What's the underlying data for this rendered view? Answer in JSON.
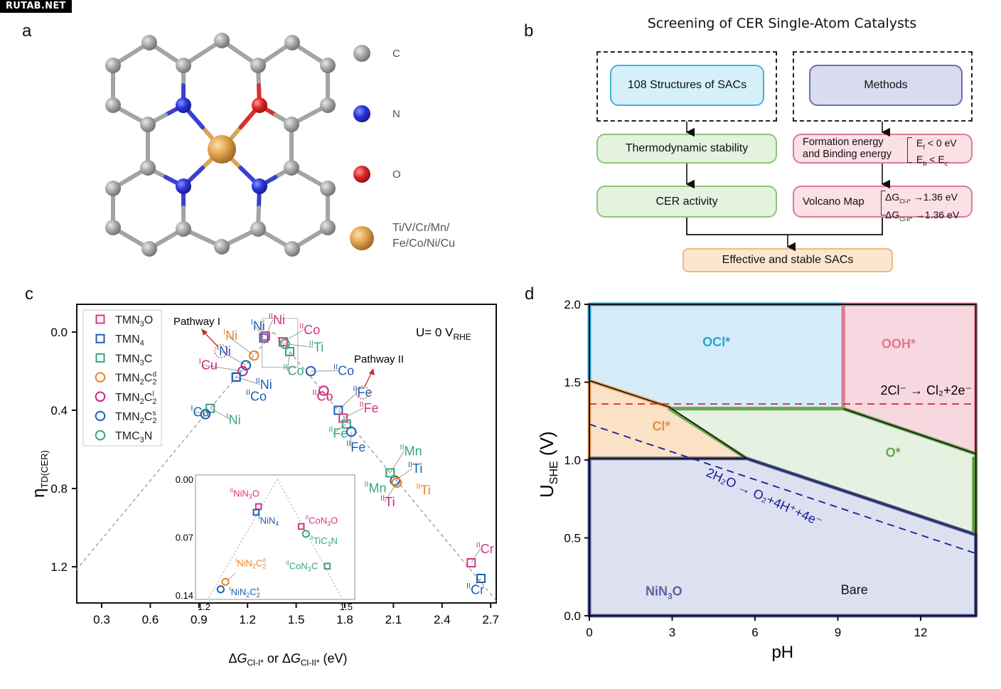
{
  "watermark": "RUTAB.NET",
  "panels": {
    "a": {
      "label": "a",
      "legend": [
        {
          "name": "C",
          "color": "#9a9a9a"
        },
        {
          "name": "N",
          "color": "#2b34c8"
        },
        {
          "name": "O",
          "color": "#e02428"
        },
        {
          "name": "Ti/V/Cr/Mn/",
          "name2": "Fe/Co/Ni/Cu",
          "color": "#e0a24c"
        }
      ]
    },
    "b": {
      "label": "b",
      "title": "Screening of CER Single-Atom Catalysts",
      "structures": "108  Structures of SACs",
      "methods": "Methods",
      "thermo": "Thermodynamic stability",
      "cer": "CER activity",
      "formation": "Formation energy",
      "binding": "and Binding energy",
      "ef": "< 0 eV",
      "eb": "<  E",
      "volcano": "Volcano Map",
      "dg1": "→1.36 eV",
      "dg2": "→1.36 eV",
      "effective": "Effective and stable SACs"
    },
    "c": {
      "label": "c"
    },
    "d": {
      "label": "d"
    }
  },
  "chart_data": [
    {
      "type": "scatter",
      "panel": "c",
      "title": "",
      "annotation_potential": "U= 0 V",
      "annotation_potential_sub": "RHE",
      "xlabel": "ΔG(Cl-I*) or ΔG(Cl-II*) (eV)",
      "ylabel": "η TD(CER)",
      "xlim": [
        0.14,
        2.74
      ],
      "ylim": [
        1.45,
        -0.14
      ],
      "y_inverted": true,
      "xticks": [
        "0.3",
        "0.6",
        "0.9",
        "1.2",
        "1.5",
        "1.8",
        "2.1",
        "2.4",
        "2.7"
      ],
      "yticks": [
        "0.0",
        "0.4",
        "0.8",
        "1.2"
      ],
      "legend_position": "top-left",
      "volcano_apex": [
        1.36,
        0.0
      ],
      "legend": [
        {
          "label": "TMN",
          "sub": "3",
          "tail": "O",
          "marker": "square",
          "color": "#d63384"
        },
        {
          "label": "TMN",
          "sub": "4",
          "tail": "",
          "marker": "square",
          "color": "#1f5fb0"
        },
        {
          "label": "TMN",
          "sub": "3",
          "tail": "C",
          "marker": "square",
          "color": "#3aa57a"
        },
        {
          "label": "TMN",
          "sub": "2",
          "tail": "C",
          "sub2": "2",
          "sup2": "d",
          "marker": "circle",
          "color": "#e8832a"
        },
        {
          "label": "TMN",
          "sub": "2",
          "tail": "C",
          "sub2": "2",
          "sup2": "l",
          "marker": "circle",
          "color": "#c8267d"
        },
        {
          "label": "TMN",
          "sub": "2",
          "tail": "C",
          "sub2": "2",
          "sup2": "s",
          "marker": "circle",
          "color": "#1f5fb0"
        },
        {
          "label": "TMC",
          "sub": "3",
          "tail": "N",
          "marker": "circle",
          "color": "#3aa57a"
        }
      ],
      "pathway_labels": [
        "Pathway I",
        "Pathway II"
      ],
      "points": [
        {
          "series": 1,
          "x": 1.3,
          "y": 0.03,
          "label": "INi",
          "lx": 1.22,
          "ly": -0.01
        },
        {
          "series": 0,
          "x": 1.31,
          "y": 0.02,
          "label": "IINi",
          "lx": 1.33,
          "ly": -0.04
        },
        {
          "series": 0,
          "x": 1.42,
          "y": 0.05,
          "label": "IICo",
          "lx": 1.52,
          "ly": 0.01
        },
        {
          "series": 6,
          "x": 1.43,
          "y": 0.06,
          "label": "IITi",
          "lx": 1.58,
          "ly": 0.1
        },
        {
          "series": 2,
          "x": 1.46,
          "y": 0.1,
          "label": "IICo",
          "lx": 1.42,
          "ly": 0.22
        },
        {
          "series": 3,
          "x": 1.24,
          "y": 0.12,
          "label": "INi",
          "lx": 1.05,
          "ly": 0.04
        },
        {
          "series": 5,
          "x": 1.19,
          "y": 0.17,
          "label": "INi",
          "lx": 1.01,
          "ly": 0.12
        },
        {
          "series": 4,
          "x": 1.17,
          "y": 0.2,
          "label": "ICu",
          "lx": 0.9,
          "ly": 0.19
        },
        {
          "series": 1,
          "x": 1.13,
          "y": 0.23,
          "label": "IINi",
          "lx": 1.25,
          "ly": 0.29
        },
        {
          "series": 1,
          "x": 1.13,
          "y": 0.23,
          "label": "IICo",
          "lx": 1.19,
          "ly": 0.34,
          "hide": true
        },
        {
          "series": 5,
          "x": 1.59,
          "y": 0.2,
          "label": "IICo",
          "lx": 1.73,
          "ly": 0.22
        },
        {
          "series": 4,
          "x": 1.67,
          "y": 0.3,
          "label": "IICo",
          "lx": 1.6,
          "ly": 0.35
        },
        {
          "series": 1,
          "x": 1.76,
          "y": 0.4,
          "label": "IIFe",
          "lx": 1.85,
          "ly": 0.33
        },
        {
          "series": 0,
          "x": 1.79,
          "y": 0.44,
          "label": "IIFe",
          "lx": 1.89,
          "ly": 0.41
        },
        {
          "series": 2,
          "x": 1.81,
          "y": 0.47,
          "label": "IIFe",
          "lx": 1.7,
          "ly": 0.54
        },
        {
          "series": 5,
          "x": 1.84,
          "y": 0.51,
          "label": "IIFe",
          "lx": 1.81,
          "ly": 0.61
        },
        {
          "series": 2,
          "x": 0.97,
          "y": 0.39,
          "label": "INi",
          "lx": 1.07,
          "ly": 0.47
        },
        {
          "series": 5,
          "x": 0.94,
          "y": 0.42,
          "label": "ICu",
          "lx": 0.85,
          "ly": 0.43
        },
        {
          "series": 2,
          "x": 2.08,
          "y": 0.72,
          "label": "IIMn",
          "lx": 2.14,
          "ly": 0.63
        },
        {
          "series": 5,
          "x": 2.11,
          "y": 0.76,
          "label": "IITi",
          "lx": 2.19,
          "ly": 0.72
        },
        {
          "series": 4,
          "x": 2.12,
          "y": 0.77,
          "label": "IITi",
          "lx": 2.02,
          "ly": 0.89
        },
        {
          "series": 3,
          "x": 2.12,
          "y": 0.77,
          "label": "IITi",
          "lx": 2.23,
          "ly": 0.83,
          "hide": true
        },
        {
          "series": 2,
          "x": 2.08,
          "y": 0.72,
          "label": "IIMn",
          "lx": 1.93,
          "ly": 0.82,
          "hide": true
        },
        {
          "series": 0,
          "x": 2.58,
          "y": 1.18,
          "label": "IICr",
          "lx": 2.61,
          "ly": 1.13
        },
        {
          "series": 1,
          "x": 2.64,
          "y": 1.26,
          "label": "IICr",
          "lx": 2.55,
          "ly": 1.34
        }
      ],
      "inset": {
        "xlim": [
          1.2,
          1.5
        ],
        "ylim": [
          0.14,
          0.0
        ],
        "xticks": [
          "1.2",
          "1.5"
        ],
        "yticks": [
          "0.00",
          "0.07",
          "0.14"
        ],
        "points": [
          {
            "series": 0,
            "x": 1.315,
            "y": 0.033,
            "label": "IINiN",
            "sub": "3",
            "tail": "O"
          },
          {
            "series": 1,
            "x": 1.31,
            "y": 0.04,
            "label": "INiN",
            "sub": "4",
            "tail": ""
          },
          {
            "series": 0,
            "x": 1.405,
            "y": 0.057,
            "label": "IICoN",
            "sub": "3",
            "tail": "O"
          },
          {
            "series": 6,
            "x": 1.415,
            "y": 0.066,
            "label": "IITiC",
            "sub": "3",
            "tail": "N"
          },
          {
            "series": 2,
            "x": 1.46,
            "y": 0.105,
            "label": "IICoN",
            "sub": "3",
            "tail": "C"
          },
          {
            "series": 3,
            "x": 1.245,
            "y": 0.124,
            "label": "INiN",
            "sub": "2",
            "tail": "C",
            "sub2": "2",
            "sup2": "d"
          },
          {
            "series": 5,
            "x": 1.235,
            "y": 0.133,
            "label": "INiN",
            "sub": "2",
            "tail": "C",
            "sub2": "2",
            "sup2": "s"
          }
        ]
      }
    },
    {
      "type": "area",
      "panel": "d",
      "title": "",
      "xlabel": "pH",
      "ylabel": "U",
      "ylabel_sub": "SHE",
      "ylabel_unit": "(V)",
      "xlim": [
        0,
        14
      ],
      "ylim": [
        0,
        2.0
      ],
      "xticks": [
        "0",
        "3",
        "6",
        "9",
        "12"
      ],
      "yticks": [
        "0.0",
        "0.5",
        "1.0",
        "1.5",
        "2.0"
      ],
      "regions": [
        {
          "name": "OCl*",
          "fill": "#d4ecf8",
          "edge": "#2aa3d8",
          "label_color": "#2aa3d8",
          "polygon": [
            [
              0,
              2.0
            ],
            [
              9.2,
              2.0
            ],
            [
              9.2,
              1.33
            ],
            [
              2.9,
              1.33
            ],
            [
              0,
              1.51
            ]
          ]
        },
        {
          "name": "OOH*",
          "fill": "#f7d7e0",
          "edge": "#e0798f",
          "label_color": "#e07890",
          "polygon": [
            [
              9.2,
              2.0
            ],
            [
              14,
              2.0
            ],
            [
              14,
              1.04
            ],
            [
              9.2,
              1.33
            ]
          ]
        },
        {
          "name": "Cl*",
          "fill": "#fbe1c5",
          "edge": "#f0a860",
          "label_color": "#e0943a",
          "polygon": [
            [
              0,
              1.51
            ],
            [
              2.9,
              1.34
            ],
            [
              5.7,
              1.01
            ],
            [
              0,
              1.01
            ]
          ]
        },
        {
          "name": "O*",
          "fill": "#e5f1e1",
          "edge": "#6aa84f",
          "label_color": "#6aa84f",
          "polygon": [
            [
              2.9,
              1.33
            ],
            [
              9.2,
              1.33
            ],
            [
              14,
              1.04
            ],
            [
              14,
              0.52
            ],
            [
              5.7,
              1.01
            ]
          ]
        },
        {
          "name": "Bare",
          "fill": "#dde0ef",
          "edge": "#4f5899",
          "label_color": "#111111",
          "polygon": [
            [
              0,
              1.01
            ],
            [
              5.7,
              1.01
            ],
            [
              14,
              0.52
            ],
            [
              14,
              0
            ],
            [
              0,
              0
            ]
          ]
        }
      ],
      "material_label": "NiN",
      "material_sub": "3",
      "material_tail": "O",
      "lines": [
        {
          "name": "2Cl- → Cl2+2e-",
          "type": "dashed",
          "color": "#d62a2a",
          "points": [
            [
              0,
              1.36
            ],
            [
              14,
              1.36
            ]
          ]
        },
        {
          "name": "2H2O → O2+4H++4e-",
          "type": "dashed",
          "color": "#1a1a9a",
          "points": [
            [
              0,
              1.23
            ],
            [
              14,
              0.4
            ]
          ]
        }
      ],
      "annotations": {
        "cl_reaction": "2Cl⁻ → Cl₂+2e⁻",
        "oer_reaction": "2H₂O → O₂+4H⁺+4e⁻"
      }
    }
  ]
}
